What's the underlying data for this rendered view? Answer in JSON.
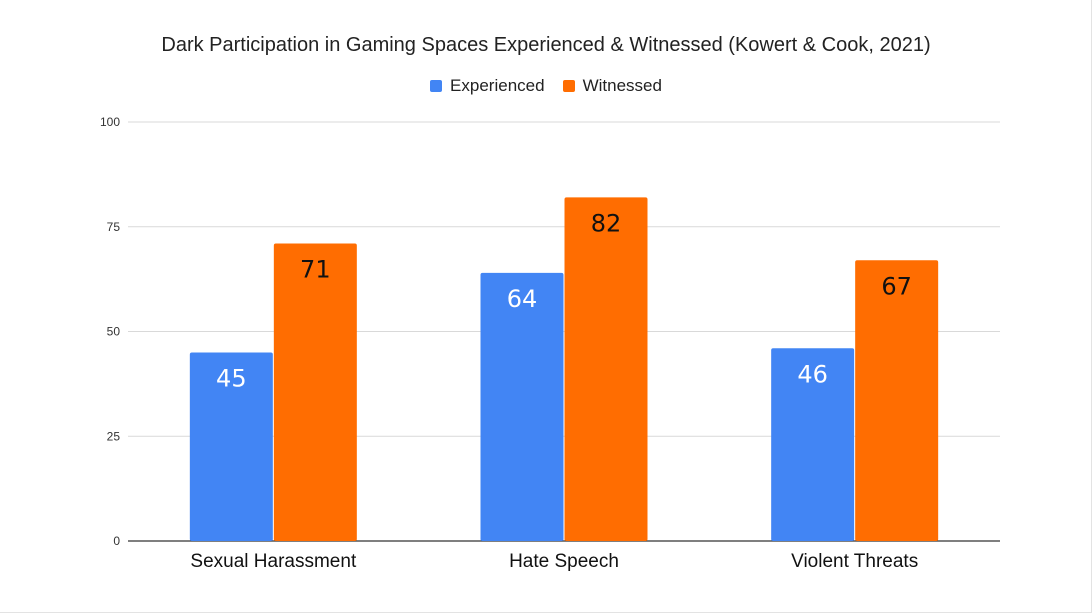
{
  "chart_data": {
    "type": "bar",
    "title": "Dark Participation in Gaming Spaces Experienced & Witnessed (Kowert & Cook, 2021)",
    "categories": [
      "Sexual Harassment",
      "Hate Speech",
      "Violent Threats"
    ],
    "series": [
      {
        "name": "Experienced",
        "values": [
          45,
          64,
          46
        ],
        "color": "#4285f4",
        "label_color": "#ffffff"
      },
      {
        "name": "Witnessed",
        "values": [
          71,
          82,
          67
        ],
        "color": "#ff6d01",
        "label_color": "#111111"
      }
    ],
    "ylim": [
      0,
      100
    ],
    "yticks": [
      0,
      25,
      50,
      75,
      100
    ],
    "grid": true,
    "legend": "top-center",
    "data_labels": true
  }
}
